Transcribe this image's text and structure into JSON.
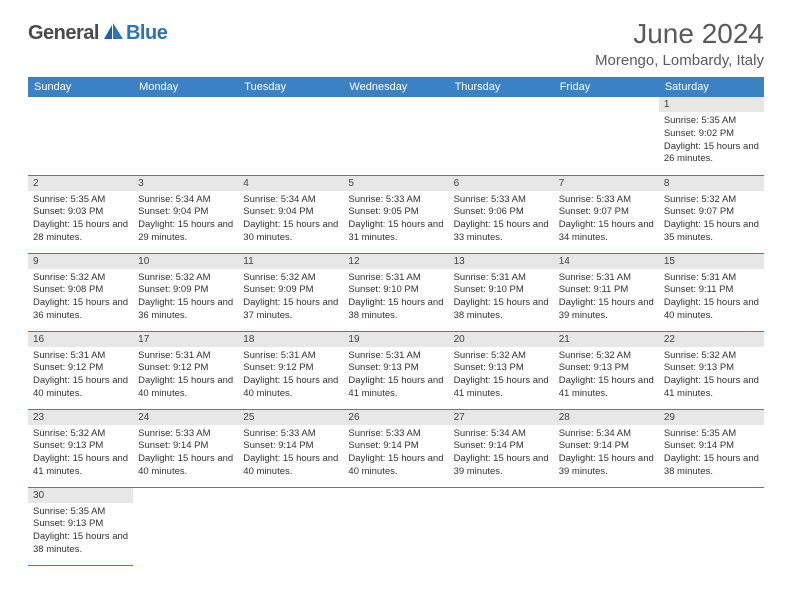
{
  "logo": {
    "general": "General",
    "blue": "Blue"
  },
  "title": "June 2024",
  "location": "Morengo, Lombardy, Italy",
  "colors": {
    "header_bg": "#3b82c4",
    "header_text": "#ffffff",
    "daynum_bg": "#e7e7e7",
    "border": "#3b82c4",
    "logo_general": "#4a4a4a",
    "logo_blue": "#2e74b5"
  },
  "weekdays": [
    "Sunday",
    "Monday",
    "Tuesday",
    "Wednesday",
    "Thursday",
    "Friday",
    "Saturday"
  ],
  "weeks": [
    [
      null,
      null,
      null,
      null,
      null,
      null,
      {
        "n": "1",
        "sr": "5:35 AM",
        "ss": "9:02 PM",
        "dl": "15 hours and 26 minutes."
      }
    ],
    [
      {
        "n": "2",
        "sr": "5:35 AM",
        "ss": "9:03 PM",
        "dl": "15 hours and 28 minutes."
      },
      {
        "n": "3",
        "sr": "5:34 AM",
        "ss": "9:04 PM",
        "dl": "15 hours and 29 minutes."
      },
      {
        "n": "4",
        "sr": "5:34 AM",
        "ss": "9:04 PM",
        "dl": "15 hours and 30 minutes."
      },
      {
        "n": "5",
        "sr": "5:33 AM",
        "ss": "9:05 PM",
        "dl": "15 hours and 31 minutes."
      },
      {
        "n": "6",
        "sr": "5:33 AM",
        "ss": "9:06 PM",
        "dl": "15 hours and 33 minutes."
      },
      {
        "n": "7",
        "sr": "5:33 AM",
        "ss": "9:07 PM",
        "dl": "15 hours and 34 minutes."
      },
      {
        "n": "8",
        "sr": "5:32 AM",
        "ss": "9:07 PM",
        "dl": "15 hours and 35 minutes."
      }
    ],
    [
      {
        "n": "9",
        "sr": "5:32 AM",
        "ss": "9:08 PM",
        "dl": "15 hours and 36 minutes."
      },
      {
        "n": "10",
        "sr": "5:32 AM",
        "ss": "9:09 PM",
        "dl": "15 hours and 36 minutes."
      },
      {
        "n": "11",
        "sr": "5:32 AM",
        "ss": "9:09 PM",
        "dl": "15 hours and 37 minutes."
      },
      {
        "n": "12",
        "sr": "5:31 AM",
        "ss": "9:10 PM",
        "dl": "15 hours and 38 minutes."
      },
      {
        "n": "13",
        "sr": "5:31 AM",
        "ss": "9:10 PM",
        "dl": "15 hours and 38 minutes."
      },
      {
        "n": "14",
        "sr": "5:31 AM",
        "ss": "9:11 PM",
        "dl": "15 hours and 39 minutes."
      },
      {
        "n": "15",
        "sr": "5:31 AM",
        "ss": "9:11 PM",
        "dl": "15 hours and 40 minutes."
      }
    ],
    [
      {
        "n": "16",
        "sr": "5:31 AM",
        "ss": "9:12 PM",
        "dl": "15 hours and 40 minutes."
      },
      {
        "n": "17",
        "sr": "5:31 AM",
        "ss": "9:12 PM",
        "dl": "15 hours and 40 minutes."
      },
      {
        "n": "18",
        "sr": "5:31 AM",
        "ss": "9:12 PM",
        "dl": "15 hours and 40 minutes."
      },
      {
        "n": "19",
        "sr": "5:31 AM",
        "ss": "9:13 PM",
        "dl": "15 hours and 41 minutes."
      },
      {
        "n": "20",
        "sr": "5:32 AM",
        "ss": "9:13 PM",
        "dl": "15 hours and 41 minutes."
      },
      {
        "n": "21",
        "sr": "5:32 AM",
        "ss": "9:13 PM",
        "dl": "15 hours and 41 minutes."
      },
      {
        "n": "22",
        "sr": "5:32 AM",
        "ss": "9:13 PM",
        "dl": "15 hours and 41 minutes."
      }
    ],
    [
      {
        "n": "23",
        "sr": "5:32 AM",
        "ss": "9:13 PM",
        "dl": "15 hours and 41 minutes."
      },
      {
        "n": "24",
        "sr": "5:33 AM",
        "ss": "9:14 PM",
        "dl": "15 hours and 40 minutes."
      },
      {
        "n": "25",
        "sr": "5:33 AM",
        "ss": "9:14 PM",
        "dl": "15 hours and 40 minutes."
      },
      {
        "n": "26",
        "sr": "5:33 AM",
        "ss": "9:14 PM",
        "dl": "15 hours and 40 minutes."
      },
      {
        "n": "27",
        "sr": "5:34 AM",
        "ss": "9:14 PM",
        "dl": "15 hours and 39 minutes."
      },
      {
        "n": "28",
        "sr": "5:34 AM",
        "ss": "9:14 PM",
        "dl": "15 hours and 39 minutes."
      },
      {
        "n": "29",
        "sr": "5:35 AM",
        "ss": "9:14 PM",
        "dl": "15 hours and 38 minutes."
      }
    ],
    [
      {
        "n": "30",
        "sr": "5:35 AM",
        "ss": "9:13 PM",
        "dl": "15 hours and 38 minutes."
      },
      null,
      null,
      null,
      null,
      null,
      null
    ]
  ],
  "labels": {
    "sunrise": "Sunrise:",
    "sunset": "Sunset:",
    "daylight": "Daylight:"
  }
}
